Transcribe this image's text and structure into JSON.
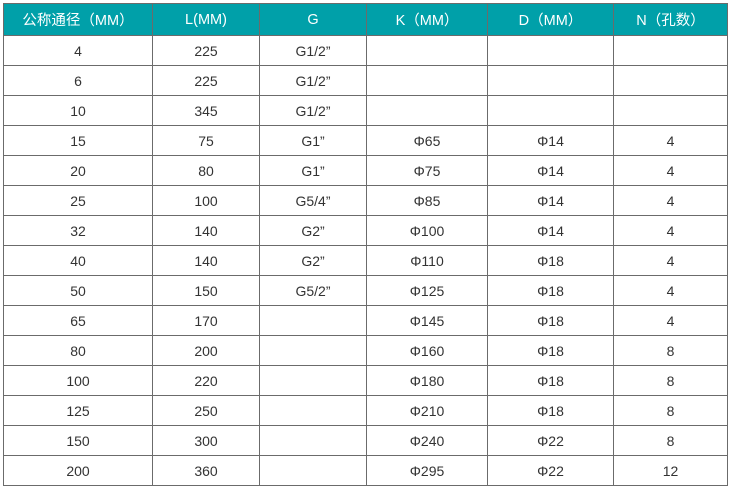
{
  "colors": {
    "header_bg": "#00a0a9",
    "header_text": "#ffffff",
    "border": "#6b6b6b"
  },
  "headers": [
    "公称通径（MM）",
    "L(MM)",
    "G",
    "K（MM）",
    "D（MM）",
    "N（孔数）"
  ],
  "rows": [
    [
      "4",
      "225",
      "G1/2”",
      "",
      "",
      ""
    ],
    [
      "6",
      "225",
      "G1/2”",
      "",
      "",
      ""
    ],
    [
      "10",
      "345",
      "G1/2”",
      "",
      "",
      ""
    ],
    [
      "15",
      "75",
      "G1”",
      "Φ65",
      "Φ14",
      "4"
    ],
    [
      "20",
      "80",
      "G1”",
      "Φ75",
      "Φ14",
      "4"
    ],
    [
      "25",
      "100",
      "G5/4”",
      "Φ85",
      "Φ14",
      "4"
    ],
    [
      "32",
      "140",
      "G2”",
      "Φ100",
      "Φ14",
      "4"
    ],
    [
      "40",
      "140",
      "G2”",
      "Φ110",
      "Φ18",
      "4"
    ],
    [
      "50",
      "150",
      "G5/2”",
      "Φ125",
      "Φ18",
      "4"
    ],
    [
      "65",
      "170",
      "",
      "Φ145",
      "Φ18",
      "4"
    ],
    [
      "80",
      "200",
      "",
      "Φ160",
      "Φ18",
      "8"
    ],
    [
      "100",
      "220",
      "",
      "Φ180",
      "Φ18",
      "8"
    ],
    [
      "125",
      "250",
      "",
      "Φ210",
      "Φ18",
      "8"
    ],
    [
      "150",
      "300",
      "",
      "Φ240",
      "Φ22",
      "8"
    ],
    [
      "200",
      "360",
      "",
      "Φ295",
      "Φ22",
      "12"
    ]
  ]
}
